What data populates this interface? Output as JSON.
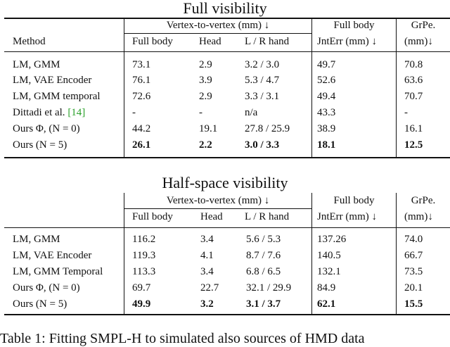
{
  "table1": {
    "title": "Full visibility",
    "group_header": "Vertex-to-vertex (mm) ↓",
    "full_body_group": "Full body",
    "grpe_group": "GrPe.",
    "col_method": "Method",
    "col_full_body": "Full body",
    "col_head": "Head",
    "col_hands": "L / R hand",
    "col_jnterr": "JntErr (mm) ↓",
    "col_grpe_unit": "(mm)↓",
    "rows": [
      {
        "method": "LM, GMM",
        "full_body": "73.1",
        "head": "2.9",
        "hands": "3.2 / 3.0",
        "jnterr": "49.7",
        "grpe": "70.8"
      },
      {
        "method": "LM, VAE Encoder",
        "full_body": "76.1",
        "head": "3.9",
        "hands": "5.3 / 4.7",
        "jnterr": "52.6",
        "grpe": "63.6"
      },
      {
        "method": "LM, GMM temporal",
        "full_body": "72.6",
        "head": "2.9",
        "hands": "3.3 / 3.1",
        "jnterr": "49.4",
        "grpe": "70.7"
      },
      {
        "method": "Dittadi et al. ",
        "method_ref": "[14]",
        "full_body": "-",
        "head": "-",
        "hands": "n/a",
        "jnterr": "43.3",
        "grpe": "-"
      },
      {
        "method": "Ours Φ, (N = 0)",
        "full_body": "44.2",
        "head": "19.1",
        "hands": "27.8 / 25.9",
        "jnterr": "38.9",
        "grpe": "16.1"
      },
      {
        "method": "Ours (N = 5)",
        "full_body": "26.1",
        "head": "2.2",
        "hands": "3.0 / 3.3",
        "jnterr": "18.1",
        "grpe": "12.5"
      }
    ]
  },
  "table2": {
    "title": "Half-space visibility",
    "group_header": "Vertex-to-vertex (mm) ↓",
    "full_body_group": "Full body",
    "grpe_group": "GrPe.",
    "col_full_body": "Full body",
    "col_head": "Head",
    "col_hands": "L / R hand",
    "col_jnterr": "JntErr (mm) ↓",
    "col_grpe_unit": "(mm)↓",
    "rows": [
      {
        "method": "LM, GMM",
        "full_body": "116.2",
        "head": "3.4",
        "hands": "5.6 / 5.3",
        "jnterr": "137.26",
        "grpe": "74.0"
      },
      {
        "method": "LM, VAE Encoder",
        "full_body": "119.3",
        "head": "4.1",
        "hands": "8.7 / 7.6",
        "jnterr": "140.5",
        "grpe": "66.7"
      },
      {
        "method": "LM, GMM Temporal",
        "full_body": "113.3",
        "head": "3.4",
        "hands": "6.8 / 6.5",
        "jnterr": "132.1",
        "grpe": "73.5"
      },
      {
        "method": "Ours Φ, (N = 0)",
        "full_body": "69.7",
        "head": "22.7",
        "hands": "32.1 / 29.9",
        "jnterr": "84.9",
        "grpe": "20.1"
      },
      {
        "method": "Ours (N = 5)",
        "full_body": "49.9",
        "head": "3.2",
        "hands": "3.1 / 3.7",
        "jnterr": "62.1",
        "grpe": "15.5"
      }
    ]
  },
  "caption": "Table 1: Fitting SMPL-H to simulated also sources of HMD data"
}
